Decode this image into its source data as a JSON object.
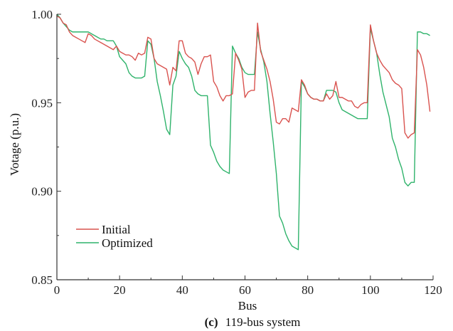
{
  "colors": {
    "initial": "#d9534f",
    "optimized": "#2fb36b",
    "axis": "#333333"
  },
  "caption": {
    "label": "(c)",
    "text": "119-bus system"
  },
  "chart_data": {
    "type": "line",
    "title": "",
    "xlabel": "Bus",
    "ylabel": "Votage (p.u.)",
    "xlim": [
      0,
      120
    ],
    "ylim": [
      0.85,
      1.0
    ],
    "grid": false,
    "legend_position": "bottom-left",
    "x_ticks": [
      0,
      20,
      40,
      60,
      80,
      100,
      120
    ],
    "x_tick_labels": [
      "0",
      "20",
      "40",
      "60",
      "80",
      "100",
      "120"
    ],
    "y_ticks": [
      0.85,
      0.9,
      0.95,
      1.0
    ],
    "y_tick_labels": [
      "0.85",
      "0.90",
      "0.95",
      "1.00"
    ],
    "series": [
      {
        "name": "Initial",
        "x": [
          0,
          1,
          2,
          3,
          4,
          5,
          6,
          7,
          8,
          9,
          10,
          11,
          12,
          13,
          14,
          15,
          16,
          17,
          18,
          19,
          20,
          21,
          22,
          23,
          24,
          25,
          26,
          27,
          28,
          29,
          30,
          31,
          32,
          33,
          34,
          35,
          36,
          37,
          38,
          39,
          40,
          41,
          42,
          43,
          44,
          45,
          46,
          47,
          48,
          49,
          50,
          51,
          52,
          53,
          54,
          55,
          56,
          57,
          58,
          59,
          60,
          61,
          62,
          63,
          64,
          65,
          66,
          67,
          68,
          69,
          70,
          71,
          72,
          73,
          74,
          75,
          76,
          77,
          78,
          79,
          80,
          81,
          82,
          83,
          84,
          85,
          86,
          87,
          88,
          89,
          90,
          91,
          92,
          93,
          94,
          95,
          96,
          97,
          98,
          99,
          100,
          101,
          102,
          103,
          104,
          105,
          106,
          107,
          108,
          109,
          110,
          111,
          112,
          113,
          114,
          115,
          116,
          117,
          118,
          119
        ],
        "values": [
          0.999,
          0.998,
          0.995,
          0.994,
          0.99,
          0.988,
          0.987,
          0.986,
          0.985,
          0.984,
          0.989,
          0.988,
          0.986,
          0.985,
          0.984,
          0.983,
          0.982,
          0.981,
          0.98,
          0.982,
          0.979,
          0.978,
          0.977,
          0.977,
          0.976,
          0.974,
          0.978,
          0.977,
          0.978,
          0.987,
          0.986,
          0.975,
          0.972,
          0.971,
          0.97,
          0.969,
          0.96,
          0.97,
          0.968,
          0.985,
          0.985,
          0.978,
          0.976,
          0.975,
          0.973,
          0.966,
          0.972,
          0.976,
          0.976,
          0.977,
          0.962,
          0.959,
          0.954,
          0.951,
          0.954,
          0.954,
          0.955,
          0.978,
          0.974,
          0.969,
          0.953,
          0.956,
          0.957,
          0.957,
          0.995,
          0.979,
          0.974,
          0.969,
          0.962,
          0.952,
          0.939,
          0.938,
          0.941,
          0.941,
          0.939,
          0.947,
          0.946,
          0.945,
          0.963,
          0.96,
          0.955,
          0.953,
          0.952,
          0.952,
          0.951,
          0.951,
          0.955,
          0.952,
          0.954,
          0.962,
          0.953,
          0.953,
          0.952,
          0.951,
          0.951,
          0.948,
          0.947,
          0.949,
          0.95,
          0.95,
          0.994,
          0.985,
          0.978,
          0.974,
          0.971,
          0.969,
          0.967,
          0.963,
          0.961,
          0.96,
          0.958,
          0.933,
          0.93,
          0.932,
          0.933,
          0.98,
          0.977,
          0.97,
          0.96,
          0.945
        ]
      },
      {
        "name": "Optimized",
        "x": [
          0,
          1,
          2,
          3,
          4,
          5,
          6,
          7,
          8,
          9,
          10,
          11,
          12,
          13,
          14,
          15,
          16,
          17,
          18,
          19,
          20,
          21,
          22,
          23,
          24,
          25,
          26,
          27,
          28,
          29,
          30,
          31,
          32,
          33,
          34,
          35,
          36,
          37,
          38,
          39,
          40,
          41,
          42,
          43,
          44,
          45,
          46,
          47,
          48,
          49,
          50,
          51,
          52,
          53,
          54,
          55,
          56,
          57,
          58,
          59,
          60,
          61,
          62,
          63,
          64,
          65,
          66,
          67,
          68,
          69,
          70,
          71,
          72,
          73,
          74,
          75,
          76,
          77,
          78,
          79,
          80,
          81,
          82,
          83,
          84,
          85,
          86,
          87,
          88,
          89,
          90,
          91,
          92,
          93,
          94,
          95,
          96,
          97,
          98,
          99,
          100,
          101,
          102,
          103,
          104,
          105,
          106,
          107,
          108,
          109,
          110,
          111,
          112,
          113,
          114,
          115,
          116,
          117,
          118,
          119
        ],
        "values": [
          1.0,
          0.998,
          0.995,
          0.993,
          0.991,
          0.99,
          0.99,
          0.99,
          0.99,
          0.99,
          0.99,
          0.989,
          0.988,
          0.987,
          0.986,
          0.986,
          0.985,
          0.985,
          0.985,
          0.982,
          0.976,
          0.974,
          0.972,
          0.967,
          0.965,
          0.964,
          0.964,
          0.964,
          0.965,
          0.985,
          0.983,
          0.975,
          0.962,
          0.954,
          0.945,
          0.935,
          0.932,
          0.96,
          0.965,
          0.979,
          0.975,
          0.972,
          0.97,
          0.965,
          0.957,
          0.955,
          0.954,
          0.954,
          0.954,
          0.926,
          0.922,
          0.917,
          0.914,
          0.912,
          0.911,
          0.91,
          0.982,
          0.978,
          0.975,
          0.97,
          0.967,
          0.966,
          0.966,
          0.966,
          0.99,
          0.98,
          0.973,
          0.962,
          0.944,
          0.928,
          0.91,
          0.886,
          0.882,
          0.876,
          0.872,
          0.869,
          0.868,
          0.867,
          0.962,
          0.959,
          0.955,
          0.953,
          0.952,
          0.952,
          0.951,
          0.951,
          0.957,
          0.957,
          0.957,
          0.956,
          0.95,
          0.946,
          0.945,
          0.944,
          0.943,
          0.942,
          0.941,
          0.941,
          0.941,
          0.941,
          0.992,
          0.985,
          0.978,
          0.966,
          0.956,
          0.949,
          0.942,
          0.93,
          0.925,
          0.918,
          0.913,
          0.905,
          0.903,
          0.905,
          0.905,
          0.99,
          0.99,
          0.989,
          0.989,
          0.988
        ]
      }
    ]
  }
}
